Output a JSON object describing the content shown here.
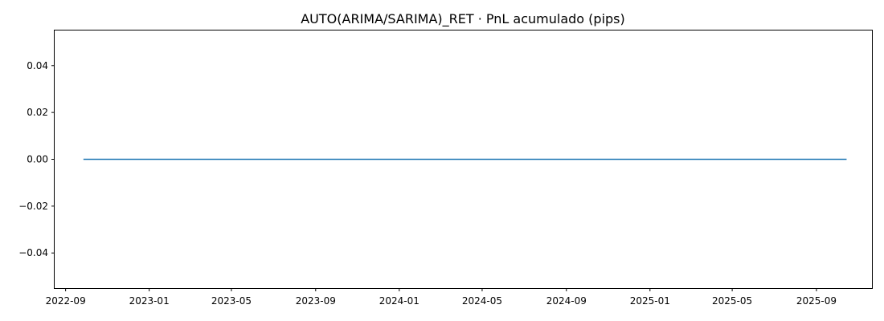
{
  "chart_data": {
    "type": "line",
    "title": "AUTO(ARIMA/SARIMA)_RET · PnL acumulado (pips)",
    "xlabel": "",
    "ylabel": "",
    "x_type": "date",
    "xlim": [
      "2022-08-16",
      "2025-11-21"
    ],
    "ylim": [
      -0.055,
      0.055
    ],
    "grid": false,
    "legend": "none",
    "x_ticks": [
      {
        "value": "2022-09-01",
        "label": "2022-09"
      },
      {
        "value": "2023-01-01",
        "label": "2023-01"
      },
      {
        "value": "2023-05-01",
        "label": "2023-05"
      },
      {
        "value": "2023-09-01",
        "label": "2023-09"
      },
      {
        "value": "2024-01-01",
        "label": "2024-01"
      },
      {
        "value": "2024-05-01",
        "label": "2024-05"
      },
      {
        "value": "2024-09-01",
        "label": "2024-09"
      },
      {
        "value": "2025-01-01",
        "label": "2025-01"
      },
      {
        "value": "2025-05-01",
        "label": "2025-05"
      },
      {
        "value": "2025-09-01",
        "label": "2025-09"
      }
    ],
    "y_ticks": [
      {
        "value": 0.04,
        "label": "0.04"
      },
      {
        "value": 0.02,
        "label": "0.02"
      },
      {
        "value": 0.0,
        "label": "0.00"
      },
      {
        "value": -0.02,
        "label": "−0.02"
      },
      {
        "value": -0.04,
        "label": "−0.04"
      }
    ],
    "series": [
      {
        "color": "#1f77b4",
        "x": [
          "2022-09-27",
          "2025-10-15"
        ],
        "values": [
          0.0,
          0.0
        ]
      }
    ]
  }
}
